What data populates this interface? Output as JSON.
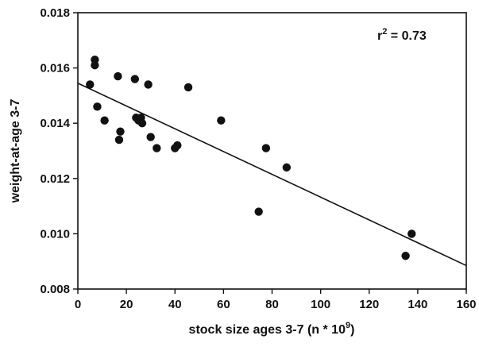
{
  "chart_data": {
    "type": "scatter",
    "xlabel_main": "stock size ages 3-7 (n * 10",
    "xlabel_sup": "9",
    "xlabel_close": ")",
    "ylabel": "weight-at-age 3-7",
    "annotation": {
      "base": "r",
      "sup": "2",
      "rest": " = 0.73"
    },
    "xlim": [
      0,
      160
    ],
    "ylim": [
      0.008,
      0.018
    ],
    "xticks": [
      "0",
      "20",
      "40",
      "60",
      "80",
      "100",
      "120",
      "140",
      "160"
    ],
    "yticks": [
      "0.008",
      "0.010",
      "0.012",
      "0.014",
      "0.016",
      "0.018"
    ],
    "xtick_values": [
      0,
      20,
      40,
      60,
      80,
      100,
      120,
      140,
      160
    ],
    "ytick_values": [
      0.008,
      0.01,
      0.012,
      0.014,
      0.016,
      0.018
    ],
    "grid": false,
    "points": [
      {
        "x": 5,
        "y": 0.0154
      },
      {
        "x": 7,
        "y": 0.0163
      },
      {
        "x": 7,
        "y": 0.0161
      },
      {
        "x": 8,
        "y": 0.0146
      },
      {
        "x": 11,
        "y": 0.0141
      },
      {
        "x": 16.5,
        "y": 0.0157
      },
      {
        "x": 17,
        "y": 0.0134
      },
      {
        "x": 17.5,
        "y": 0.0137
      },
      {
        "x": 23.5,
        "y": 0.0156
      },
      {
        "x": 24,
        "y": 0.0142
      },
      {
        "x": 25,
        "y": 0.0141
      },
      {
        "x": 26,
        "y": 0.0142
      },
      {
        "x": 26.5,
        "y": 0.014
      },
      {
        "x": 29,
        "y": 0.0154
      },
      {
        "x": 30,
        "y": 0.0135
      },
      {
        "x": 32.5,
        "y": 0.0131
      },
      {
        "x": 40,
        "y": 0.0131
      },
      {
        "x": 41,
        "y": 0.0132
      },
      {
        "x": 45.5,
        "y": 0.0153
      },
      {
        "x": 59,
        "y": 0.0141
      },
      {
        "x": 74.5,
        "y": 0.0108
      },
      {
        "x": 77.5,
        "y": 0.0131
      },
      {
        "x": 86,
        "y": 0.0124
      },
      {
        "x": 135,
        "y": 0.0092
      },
      {
        "x": 137.5,
        "y": 0.01
      }
    ],
    "fit_line": {
      "x": [
        0,
        160
      ],
      "y": [
        0.01545,
        0.00885
      ]
    },
    "marker_color": "#111111",
    "line_color": "#111111"
  }
}
